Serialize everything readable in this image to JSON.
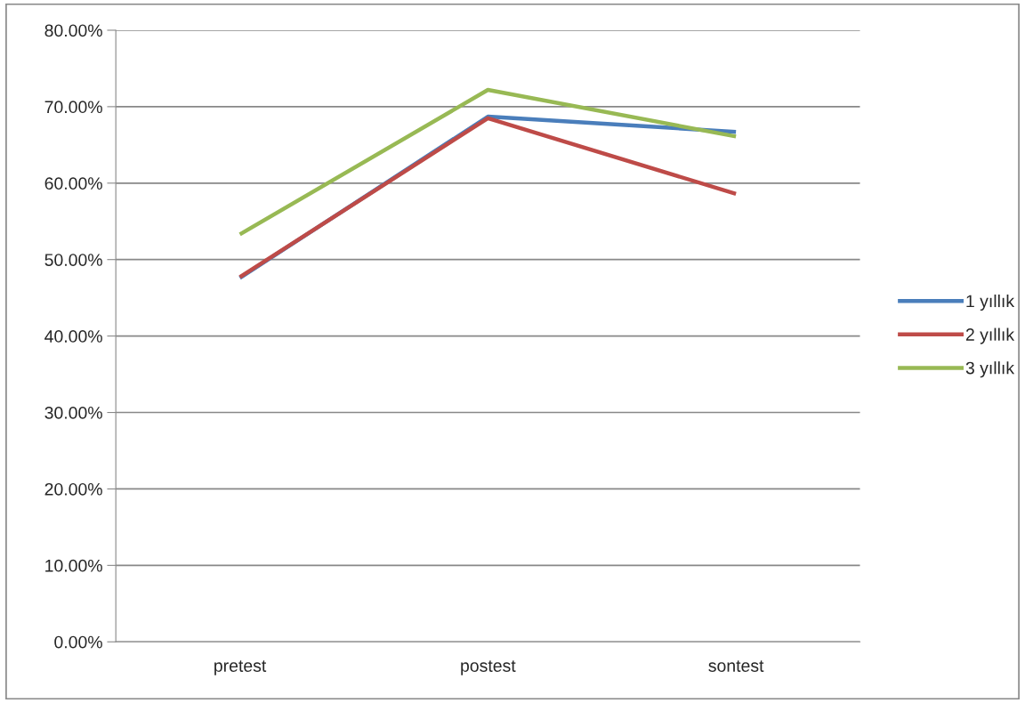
{
  "chart_data": {
    "type": "line",
    "categories": [
      "pretest",
      "postest",
      "sontest"
    ],
    "series": [
      {
        "name": "1 yıllık",
        "color": "#4a7ebb",
        "values": [
          47.6,
          68.7,
          66.7
        ]
      },
      {
        "name": "2 yıllık",
        "color": "#be4b48",
        "values": [
          47.7,
          68.5,
          58.6
        ]
      },
      {
        "name": "3 yıllık",
        "color": "#98b954",
        "values": [
          53.3,
          72.2,
          66.1
        ]
      }
    ],
    "ylim": [
      0,
      80
    ],
    "yticks": [
      {
        "value": 0,
        "label": "0.00%"
      },
      {
        "value": 10,
        "label": "10.00%"
      },
      {
        "value": 20,
        "label": "20.00%"
      },
      {
        "value": 30,
        "label": "30.00%"
      },
      {
        "value": 40,
        "label": "40.00%"
      },
      {
        "value": 50,
        "label": "50.00%"
      },
      {
        "value": 60,
        "label": "60.00%"
      },
      {
        "value": 70,
        "label": "70.00%"
      },
      {
        "value": 80,
        "label": "80.00%"
      }
    ],
    "grid": "y",
    "legend": "right",
    "marker": "none",
    "line_style": "solid"
  }
}
